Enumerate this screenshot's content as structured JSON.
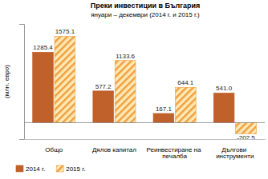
{
  "chart_data": {
    "type": "bar",
    "title": "Преки инвестиции в България",
    "subtitle": "януари – декември (2014 г. и 2015 г.)",
    "y_label": "(млн. евро)",
    "categories": [
      "Общо",
      "Дялов капитал",
      "Реинвестиране на печалба",
      "Дългови инструменти"
    ],
    "series": [
      {
        "name": "2014 г.",
        "color": "#c0602a",
        "values": [
          1285.4,
          577.2,
          167.1,
          541.0
        ],
        "value_labels": [
          "1285.4",
          "577.2",
          "167.1",
          "541.0"
        ]
      },
      {
        "name": "2015 г.",
        "color": "#f0a040",
        "values": [
          1575.1,
          1133.6,
          644.1,
          -202.5
        ],
        "value_labels": [
          "1575.1",
          "1133.6",
          "644.1",
          "-202.5"
        ]
      }
    ],
    "ylim": [
      -300,
      1800
    ],
    "yticks": [],
    "grid": false,
    "legend": "bottom-left",
    "data_labels": true,
    "tick_labels": "x"
  }
}
